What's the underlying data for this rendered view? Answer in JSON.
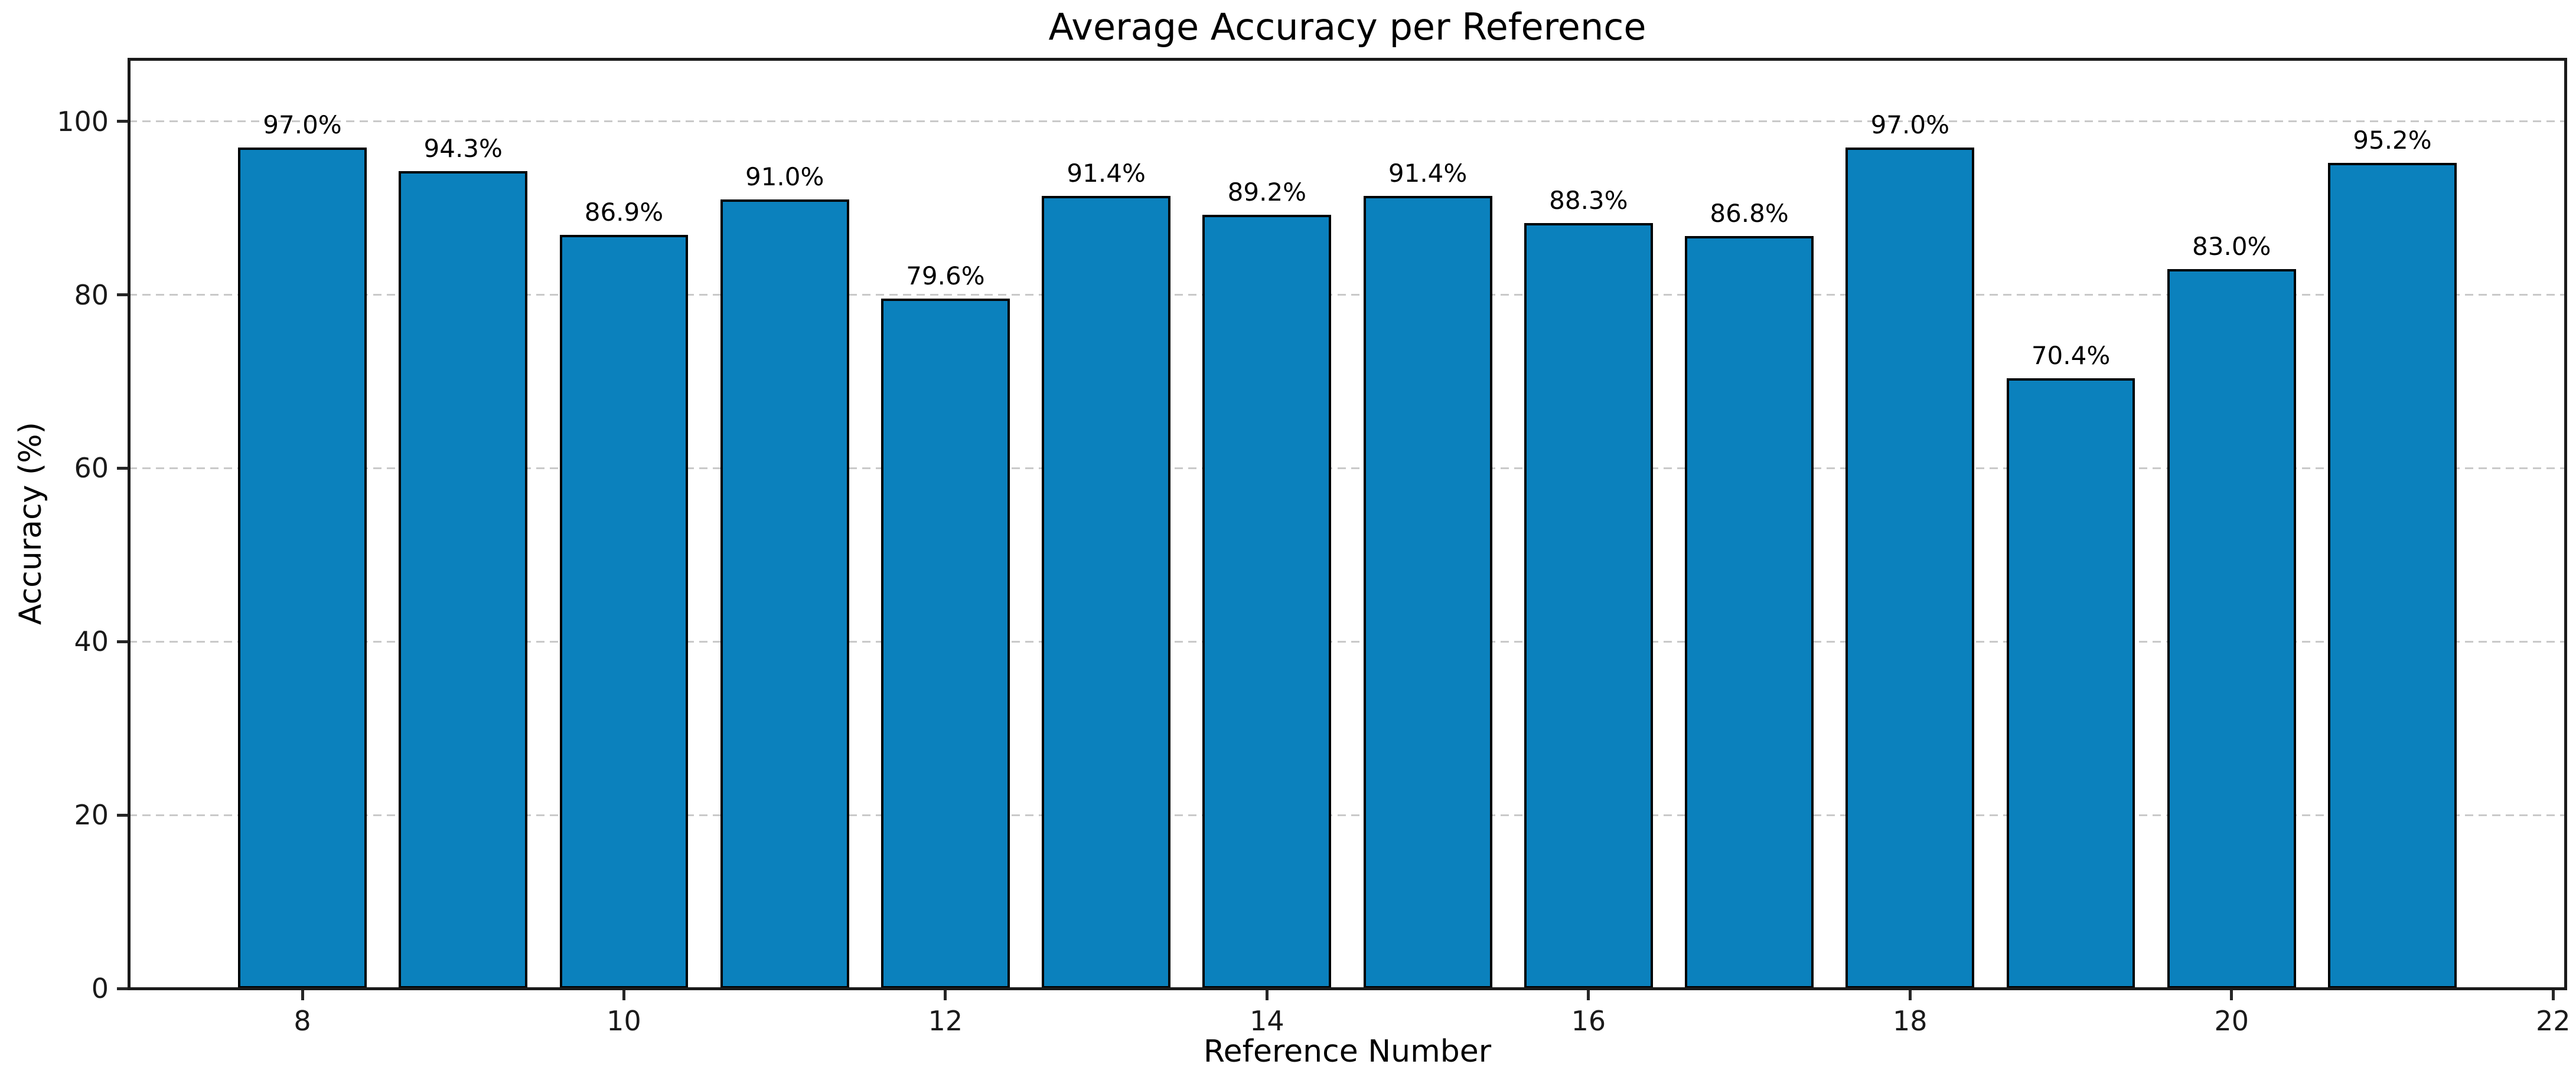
{
  "chart_data": {
    "type": "bar",
    "title": "Average Accuracy per Reference",
    "xlabel": "Reference Number",
    "ylabel": "Accuracy (%)",
    "x": [
      8,
      9,
      10,
      11,
      12,
      13,
      14,
      15,
      16,
      17,
      18,
      19,
      20,
      21
    ],
    "values": [
      97.0,
      94.3,
      86.9,
      91.0,
      79.6,
      91.4,
      89.2,
      91.4,
      88.3,
      86.8,
      97.0,
      70.4,
      83.0,
      95.2
    ],
    "bar_labels": [
      "97.0%",
      "94.3%",
      "86.9%",
      "91.0%",
      "79.6%",
      "91.4%",
      "89.2%",
      "91.4%",
      "88.3%",
      "86.8%",
      "97.0%",
      "70.4%",
      "83.0%",
      "95.2%"
    ],
    "bar_width": 0.8,
    "xticks": [
      8,
      10,
      12,
      14,
      16,
      18,
      20,
      22
    ],
    "xtick_labels": [
      "8",
      "10",
      "12",
      "14",
      "16",
      "18",
      "20",
      "22"
    ],
    "yticks": [
      0,
      20,
      40,
      60,
      80,
      100
    ],
    "ytick_labels": [
      "0",
      "20",
      "40",
      "60",
      "80",
      "100"
    ],
    "xlim": [
      6.92,
      22.08
    ],
    "ylim": [
      0,
      107.2
    ],
    "bar_color": "#0b81bd",
    "bar_edge_color": "#000000",
    "grid": "horizontal-dashed",
    "grid_color": "#c9c9c9",
    "background_color": "#ffffff",
    "legend": "none"
  }
}
